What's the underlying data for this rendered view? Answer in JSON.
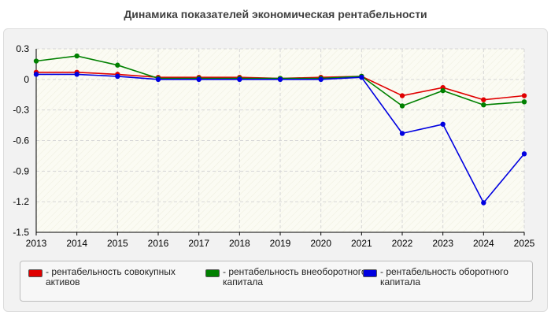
{
  "chart_data": {
    "type": "line",
    "title": "Динамика показателей экономическая рентабельности",
    "xlabel": "",
    "ylabel": "",
    "x": [
      "2013",
      "2014",
      "2015",
      "2016",
      "2017",
      "2018",
      "2019",
      "2020",
      "2021",
      "2022",
      "2023",
      "2024",
      "2025"
    ],
    "yticks": [
      "0.3",
      "0",
      "-0.3",
      "-0.6",
      "-0.9",
      "-1.2",
      "-1.5"
    ],
    "ylim": [
      -1.5,
      0.3
    ],
    "grid": true,
    "legend_position": "bottom",
    "series": [
      {
        "name": "- рентабельность совокупных активов",
        "color": "#e00000",
        "values": [
          0.07,
          0.07,
          0.05,
          0.02,
          0.02,
          0.02,
          0.01,
          0.02,
          0.03,
          -0.16,
          -0.08,
          -0.2,
          -0.16
        ]
      },
      {
        "name": "- рентабельность внеоборотного капитала",
        "color": "#008000",
        "values": [
          0.18,
          0.23,
          0.14,
          0.01,
          0.01,
          0.01,
          0.01,
          0.01,
          0.03,
          -0.26,
          -0.11,
          -0.25,
          -0.22
        ]
      },
      {
        "name": "- рентабельность оборотного капитала",
        "color": "#0000e0",
        "values": [
          0.05,
          0.05,
          0.03,
          0.0,
          0.0,
          0.0,
          0.0,
          0.0,
          0.02,
          -0.53,
          -0.44,
          -1.21,
          -0.73
        ]
      }
    ]
  }
}
